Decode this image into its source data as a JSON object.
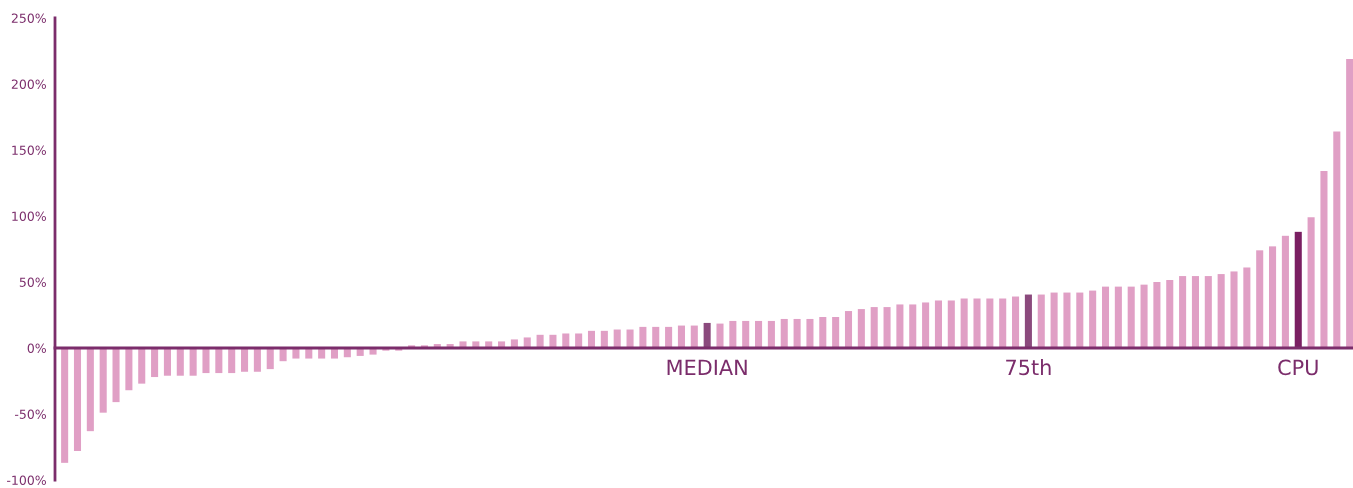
{
  "chart_data": {
    "type": "bar",
    "categories": [
      null,
      null,
      null,
      null,
      null,
      null,
      null,
      null,
      null,
      null,
      null,
      null,
      null,
      null,
      null,
      null,
      null,
      null,
      null,
      null,
      null,
      null,
      null,
      null,
      null,
      null,
      null,
      null,
      null,
      null,
      null,
      null,
      null,
      null,
      null,
      null,
      null,
      null,
      null,
      null,
      null,
      null,
      null,
      null,
      null,
      null,
      null,
      null,
      null,
      null,
      "MEDIAN",
      null,
      null,
      null,
      null,
      null,
      null,
      null,
      null,
      null,
      null,
      null,
      null,
      null,
      null,
      null,
      null,
      null,
      null,
      null,
      null,
      null,
      null,
      null,
      null,
      "75th",
      null,
      null,
      null,
      null,
      null,
      null,
      null,
      null,
      null,
      null,
      null,
      null,
      null,
      null,
      null,
      null,
      null,
      null,
      null,
      null,
      "CPU",
      null,
      null,
      null,
      null
    ],
    "values": [
      -87,
      -78,
      -63,
      -49,
      -41,
      -32,
      -27,
      -22,
      -21,
      -21,
      -21,
      -19,
      -19,
      -19,
      -18,
      -18,
      -16,
      -10,
      -8,
      -8,
      -8,
      -8,
      -7,
      -6,
      -5,
      -2,
      -2,
      2,
      2,
      3,
      3,
      5,
      5,
      5,
      5,
      6.5,
      8,
      10,
      10,
      11,
      11,
      13,
      13,
      14,
      14,
      16,
      16,
      16,
      17,
      17,
      19,
      18.5,
      20.5,
      20.5,
      20.5,
      20.5,
      22,
      22,
      22,
      23.5,
      23.5,
      28,
      29.5,
      31,
      31,
      33,
      33,
      34.5,
      36,
      36,
      37.5,
      37.5,
      37.5,
      37.5,
      39,
      40.5,
      40.5,
      42,
      42,
      42,
      43.5,
      46.5,
      46.5,
      46.5,
      48,
      50,
      51.5,
      54.5,
      54.5,
      54.5,
      56,
      58,
      61,
      74,
      77,
      85,
      88,
      99,
      134,
      164,
      219
    ],
    "colors": [
      "#e09fc5",
      "#e09fc5",
      "#e09fc5",
      "#e09fc5",
      "#e09fc5",
      "#e09fc5",
      "#e09fc5",
      "#e09fc5",
      "#e09fc5",
      "#e09fc5",
      "#e09fc5",
      "#e09fc5",
      "#e09fc5",
      "#e09fc5",
      "#e09fc5",
      "#e09fc5",
      "#e09fc5",
      "#e09fc5",
      "#e09fc5",
      "#e09fc5",
      "#e09fc5",
      "#e09fc5",
      "#e09fc5",
      "#e09fc5",
      "#e09fc5",
      "#e09fc5",
      "#e09fc5",
      "#e09fc5",
      "#e09fc5",
      "#e09fc5",
      "#e09fc5",
      "#e09fc5",
      "#e09fc5",
      "#e09fc5",
      "#e09fc5",
      "#e09fc5",
      "#e09fc5",
      "#e09fc5",
      "#e09fc5",
      "#e09fc5",
      "#e09fc5",
      "#e09fc5",
      "#e09fc5",
      "#e09fc5",
      "#e09fc5",
      "#e09fc5",
      "#e09fc5",
      "#e09fc5",
      "#e09fc5",
      "#e09fc5",
      "#8b4a7d",
      "#e09fc5",
      "#e09fc5",
      "#e09fc5",
      "#e09fc5",
      "#e09fc5",
      "#e09fc5",
      "#e09fc5",
      "#e09fc5",
      "#e09fc5",
      "#e09fc5",
      "#e09fc5",
      "#e09fc5",
      "#e09fc5",
      "#e09fc5",
      "#e09fc5",
      "#e09fc5",
      "#e09fc5",
      "#e09fc5",
      "#e09fc5",
      "#e09fc5",
      "#e09fc5",
      "#e09fc5",
      "#e09fc5",
      "#e09fc5",
      "#8b4a7d",
      "#e09fc5",
      "#e09fc5",
      "#e09fc5",
      "#e09fc5",
      "#e09fc5",
      "#e09fc5",
      "#e09fc5",
      "#e09fc5",
      "#e09fc5",
      "#e09fc5",
      "#e09fc5",
      "#e09fc5",
      "#e09fc5",
      "#e09fc5",
      "#e09fc5",
      "#e09fc5",
      "#e09fc5",
      "#e09fc5",
      "#e09fc5",
      "#e09fc5",
      "#7a1f62",
      "#e09fc5",
      "#e09fc5",
      "#e09fc5",
      "#e09fc5"
    ],
    "ylim": [
      -100,
      250
    ],
    "yticks": [
      {
        "value": -100,
        "label": "-100%"
      },
      {
        "value": -50,
        "label": "-50%"
      },
      {
        "value": 0,
        "label": "0%"
      },
      {
        "value": 50,
        "label": "50%"
      },
      {
        "value": 100,
        "label": "100%"
      },
      {
        "value": 150,
        "label": "150%"
      },
      {
        "value": 200,
        "label": "200%"
      },
      {
        "value": 250,
        "label": "250%"
      }
    ],
    "grid": false,
    "legend": false
  }
}
